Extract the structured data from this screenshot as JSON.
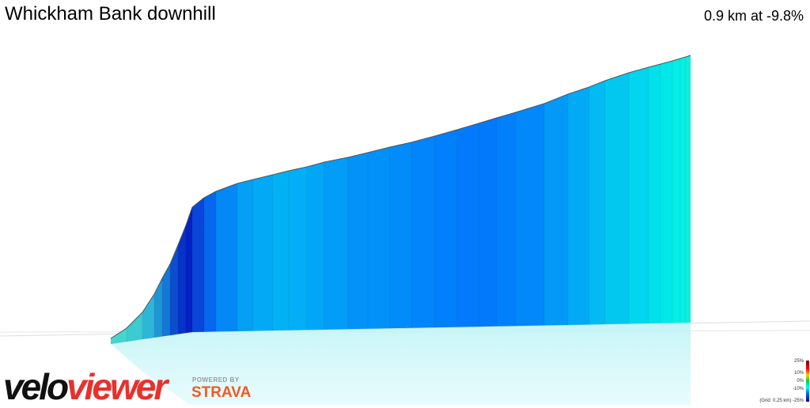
{
  "header": {
    "title": "Whickham Bank downhill",
    "summary": "0.9 km at -9.8%"
  },
  "branding": {
    "logo_left": "velo",
    "logo_right": "viewer",
    "powered_by": "POWERED BY",
    "partner": "STRAVA"
  },
  "legend": {
    "labels": [
      "25%",
      "10%",
      "0%",
      "-10%"
    ],
    "grid_note": "(Grid: 0.25 km) -25%"
  }
}
